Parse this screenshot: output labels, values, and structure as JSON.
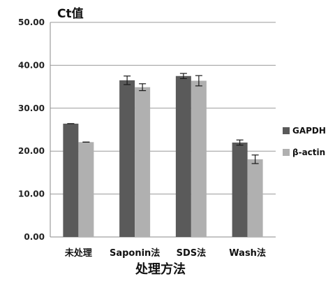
{
  "chart_data": {
    "type": "bar",
    "ylabel": "Ct值",
    "xlabel": "处理方法",
    "categories": [
      "未处理",
      "Saponin法",
      "SDS法",
      "Wash法"
    ],
    "series": [
      {
        "name": "GAPDH",
        "color": "#5a5a5a",
        "values": [
          26.4,
          36.5,
          37.5,
          22.0
        ],
        "errors": [
          0.0,
          1.0,
          0.6,
          0.6
        ]
      },
      {
        "name": "β-actin",
        "color": "#b0b0b0",
        "values": [
          22.1,
          34.9,
          36.4,
          18.1
        ],
        "errors": [
          0.0,
          0.8,
          1.2,
          1.0
        ]
      }
    ],
    "ylim": [
      0,
      50
    ],
    "yticks": [
      0,
      10,
      20,
      30,
      40,
      50
    ],
    "ytick_labels": [
      "0.00",
      "10.00",
      "20.00",
      "30.00",
      "40.00",
      "50.00"
    ],
    "grid": true,
    "legend_position": "right"
  }
}
